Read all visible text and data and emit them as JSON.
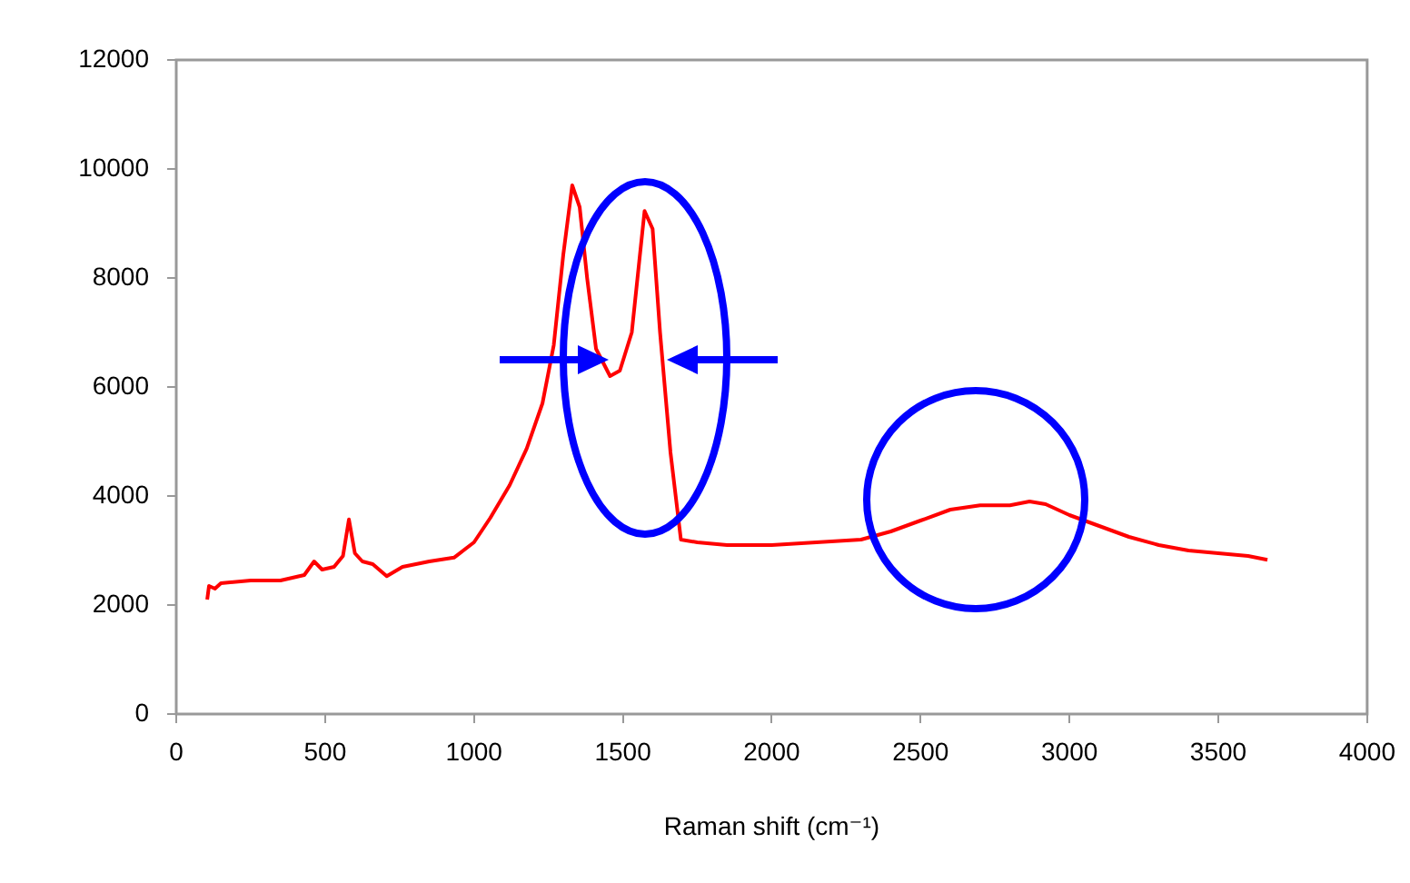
{
  "chart_data": {
    "type": "line",
    "xlabel": "Raman shift (cm⁻¹)",
    "x": [
      104,
      110,
      130,
      150,
      250,
      350,
      430,
      463,
      490,
      530,
      560,
      580,
      600,
      625,
      660,
      707,
      760,
      850,
      933,
      1000,
      1055,
      1120,
      1177,
      1230,
      1268,
      1300,
      1330,
      1355,
      1380,
      1410,
      1457,
      1490,
      1530,
      1555,
      1573,
      1600,
      1625,
      1660,
      1695,
      1750,
      1850,
      2000,
      2150,
      2300,
      2400,
      2500,
      2600,
      2700,
      2800,
      2866,
      2920,
      3000,
      3100,
      3200,
      3300,
      3400,
      3500,
      3600,
      3665
    ],
    "series": [
      {
        "color": "#ff0000",
        "values": [
          2100,
          2350,
          2300,
          2400,
          2450,
          2450,
          2550,
          2800,
          2650,
          2700,
          2900,
          3570,
          2950,
          2800,
          2750,
          2530,
          2700,
          2800,
          2870,
          3150,
          3600,
          4200,
          4870,
          5700,
          6770,
          8430,
          9700,
          9300,
          8000,
          6700,
          6200,
          6300,
          7000,
          8300,
          9230,
          8900,
          7000,
          4800,
          3200,
          3150,
          3100,
          3100,
          3150,
          3200,
          3350,
          3550,
          3750,
          3830,
          3830,
          3900,
          3850,
          3650,
          3450,
          3250,
          3100,
          3000,
          2950,
          2900,
          2830
        ]
      }
    ],
    "xlim": [
      0,
      4000
    ],
    "xticks": [
      0,
      500,
      1000,
      1500,
      2000,
      2500,
      3000,
      3500,
      4000
    ],
    "ylim": [
      0,
      12000
    ],
    "yticks": [
      0,
      2000,
      4000,
      6000,
      8000,
      10000,
      12000
    ],
    "grid": false,
    "legend": false,
    "marker": "none"
  }
}
